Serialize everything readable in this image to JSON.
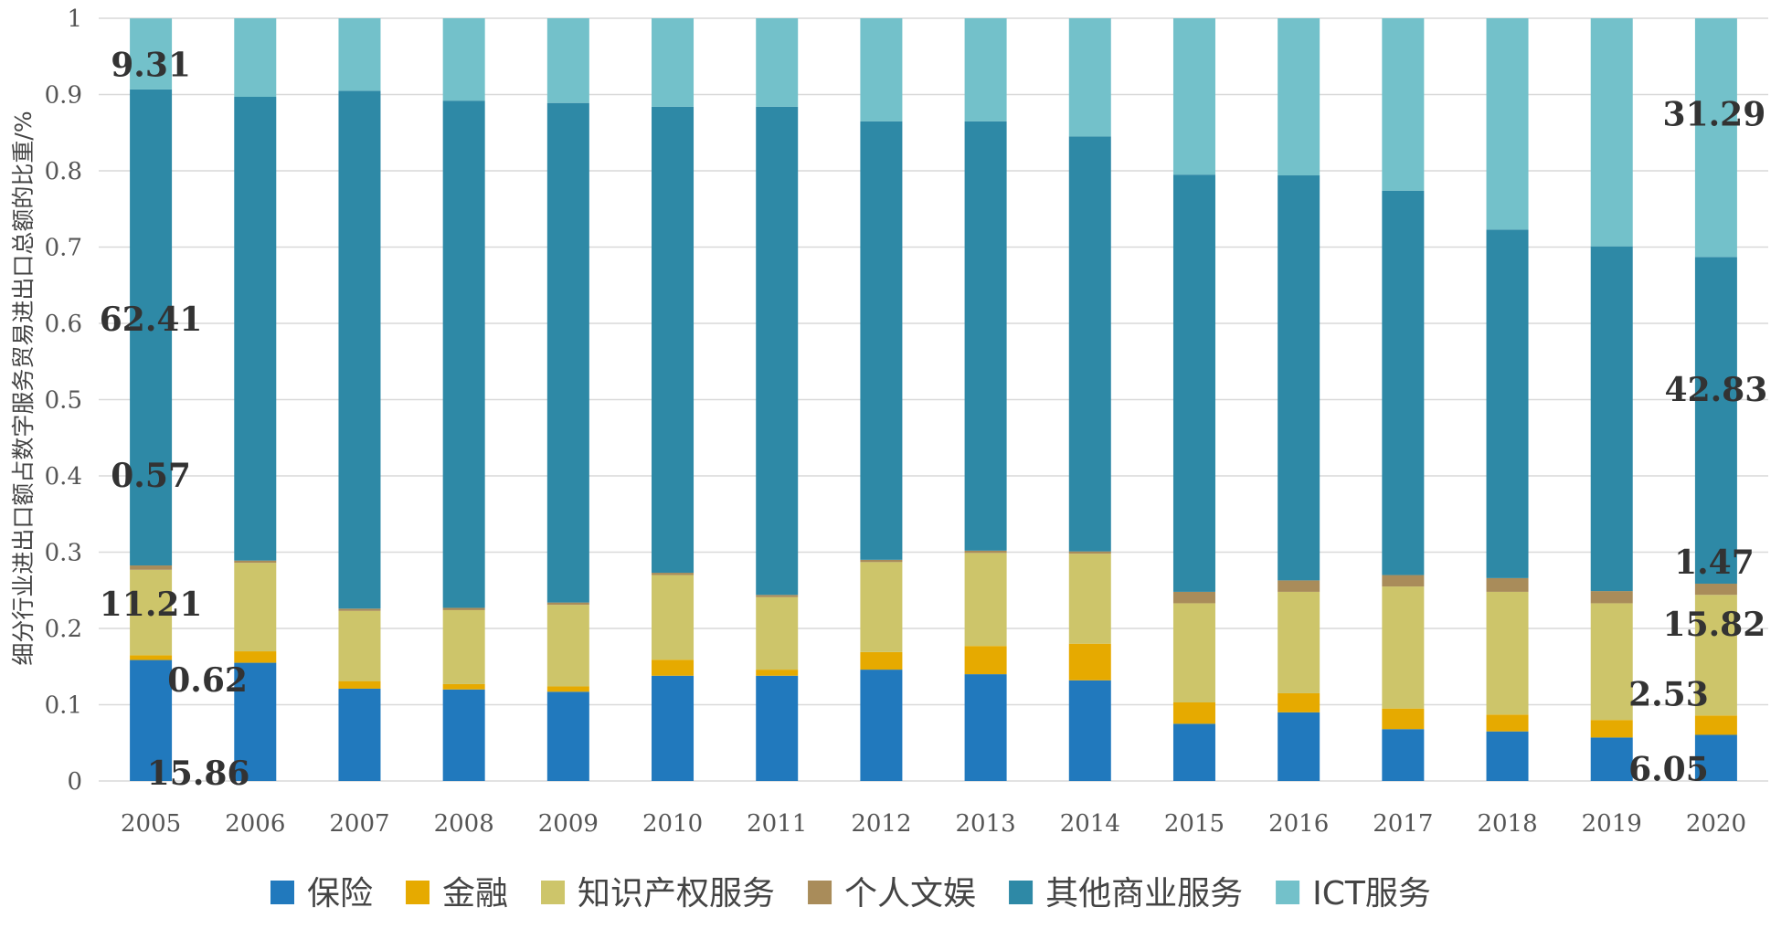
{
  "chart_data": {
    "type": "bar",
    "stacked": true,
    "ylabel": "细分行业进出口额占数字服务贸易进出口总额的比重/%",
    "ylim": [
      0,
      1
    ],
    "yticks": [
      0,
      0.1,
      0.2,
      0.3,
      0.4,
      0.5,
      0.6,
      0.7,
      0.8,
      0.9,
      1
    ],
    "ytick_labels": [
      "0",
      "0.1",
      "0.2",
      "0.3",
      "0.4",
      "0.5",
      "0.6",
      "0.7",
      "0.8",
      "0.9",
      "1"
    ],
    "grid": true,
    "legend_position": "bottom",
    "categories": [
      "2005",
      "2006",
      "2007",
      "2008",
      "2009",
      "2010",
      "2011",
      "2012",
      "2013",
      "2014",
      "2015",
      "2016",
      "2017",
      "2018",
      "2019",
      "2020"
    ],
    "series": [
      {
        "name": "保险",
        "color": "#2179bd",
        "values": [
          0.1586,
          0.155,
          0.121,
          0.12,
          0.117,
          0.138,
          0.138,
          0.146,
          0.14,
          0.132,
          0.075,
          0.09,
          0.068,
          0.065,
          0.057,
          0.0605
        ]
      },
      {
        "name": "金融",
        "color": "#e6aa00",
        "values": [
          0.0062,
          0.015,
          0.01,
          0.007,
          0.007,
          0.021,
          0.008,
          0.023,
          0.037,
          0.048,
          0.028,
          0.025,
          0.027,
          0.022,
          0.023,
          0.0253
        ]
      },
      {
        "name": "知识产权服务",
        "color": "#cdc56a",
        "values": [
          0.1121,
          0.116,
          0.092,
          0.097,
          0.107,
          0.111,
          0.095,
          0.118,
          0.122,
          0.118,
          0.13,
          0.133,
          0.16,
          0.161,
          0.153,
          0.1582
        ]
      },
      {
        "name": "个人文娱",
        "color": "#a98c5a",
        "values": [
          0.0057,
          0.003,
          0.003,
          0.003,
          0.003,
          0.003,
          0.003,
          0.003,
          0.003,
          0.003,
          0.015,
          0.015,
          0.015,
          0.018,
          0.016,
          0.0147
        ]
      },
      {
        "name": "其他商业服务",
        "color": "#2e89a6",
        "values": [
          0.6241,
          0.608,
          0.679,
          0.665,
          0.655,
          0.611,
          0.64,
          0.575,
          0.563,
          0.544,
          0.547,
          0.531,
          0.504,
          0.457,
          0.452,
          0.4283
        ]
      },
      {
        "name": "ICT服务",
        "color": "#73c1ca",
        "values": [
          0.0931,
          0.103,
          0.095,
          0.108,
          0.111,
          0.116,
          0.116,
          0.135,
          0.135,
          0.155,
          0.205,
          0.206,
          0.226,
          0.277,
          0.299,
          0.3129
        ]
      }
    ],
    "data_labels": [
      {
        "category": "2005",
        "series": "ICT服务",
        "text": "9.31"
      },
      {
        "category": "2005",
        "series": "其他商业服务",
        "text": "62.41"
      },
      {
        "category": "2005",
        "series": "个人文娱",
        "text": "0.57"
      },
      {
        "category": "2005",
        "series": "知识产权服务",
        "text": "11.21"
      },
      {
        "category": "2005",
        "series": "金融",
        "text": "0.62"
      },
      {
        "category": "2005",
        "series": "保险",
        "text": "15.86"
      },
      {
        "category": "2020",
        "series": "ICT服务",
        "text": "31.29"
      },
      {
        "category": "2020",
        "series": "其他商业服务",
        "text": "42.83"
      },
      {
        "category": "2020",
        "series": "个人文娱",
        "text": "1.47"
      },
      {
        "category": "2020",
        "series": "知识产权服务",
        "text": "15.82"
      },
      {
        "category": "2020",
        "series": "金融",
        "text": "2.53"
      },
      {
        "category": "2020",
        "series": "保险",
        "text": "6.05"
      }
    ]
  }
}
